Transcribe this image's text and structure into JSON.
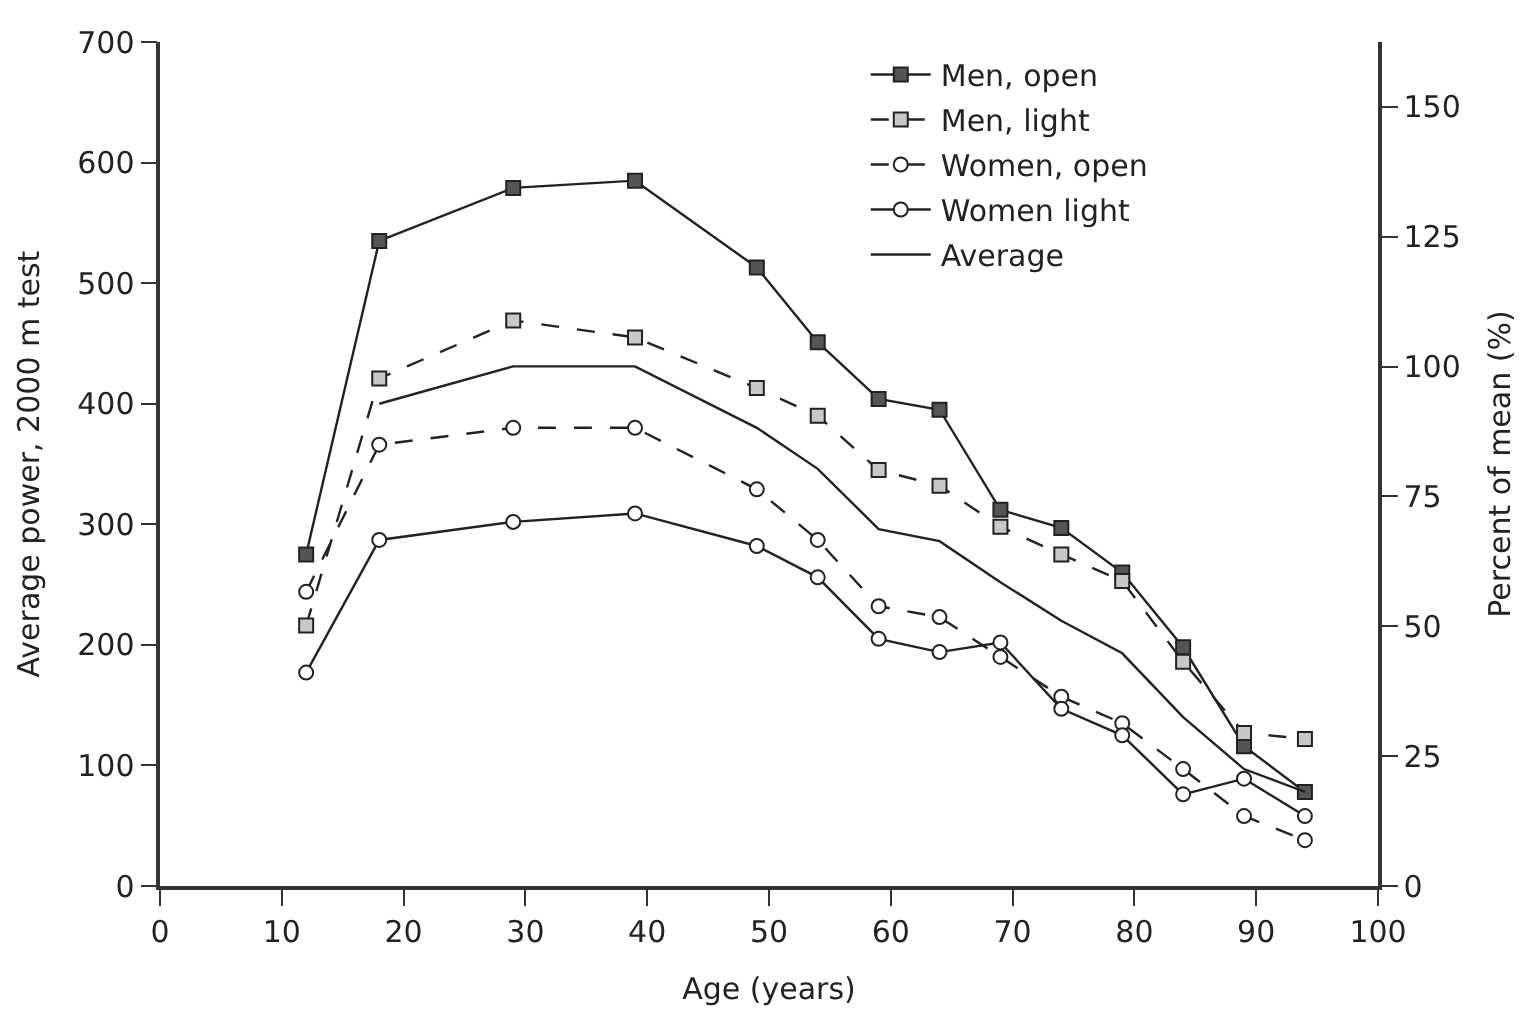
{
  "chart_data": {
    "type": "line",
    "xlabel": "Age (years)",
    "ylabel": "Average power, 2000 m test",
    "y2label": "Percent of mean (%)",
    "x": [
      12,
      18,
      29,
      39,
      49,
      54,
      59,
      64,
      69,
      74,
      79,
      84,
      89,
      94
    ],
    "xlim": [
      0,
      100
    ],
    "xticks": [
      0,
      10,
      20,
      30,
      40,
      50,
      60,
      70,
      80,
      90,
      100
    ],
    "ylim": [
      0,
      700
    ],
    "yticks": [
      0,
      100,
      200,
      300,
      400,
      500,
      600,
      700
    ],
    "y2lim": [
      0,
      162.5
    ],
    "y2ticks": [
      0,
      25,
      50,
      75,
      100,
      125,
      150
    ],
    "legend": "top right",
    "series": [
      {
        "name": "Men, open",
        "color": "#555555",
        "marker": "square",
        "line_style": "solid",
        "values": [
          275,
          535,
          579,
          585,
          513,
          451,
          404,
          395,
          312,
          297,
          260,
          198,
          116,
          78
        ]
      },
      {
        "name": "Men, light",
        "color": "#c8c8c8",
        "marker": "square",
        "line_style": "dashed",
        "values": [
          216,
          421,
          469,
          455,
          413,
          390,
          345,
          332,
          298,
          275,
          253,
          186,
          127,
          122
        ]
      },
      {
        "name": "Women, open",
        "color": "#ffffff",
        "marker": "circle",
        "line_style": "dashed",
        "values": [
          244,
          366,
          380,
          380,
          329,
          287,
          232,
          223,
          190,
          157,
          135,
          97,
          58,
          38
        ]
      },
      {
        "name": "Women light",
        "color": "#ffffff",
        "marker": "circle",
        "line_style": "solid",
        "values": [
          177,
          287,
          302,
          309,
          282,
          256,
          205,
          194,
          202,
          147,
          125,
          76,
          89,
          58
        ]
      },
      {
        "name": "Average",
        "color": "#222222",
        "marker": "none",
        "line_style": "solid",
        "x": [
          18,
          29,
          39,
          49,
          54,
          59,
          64,
          69,
          74,
          79,
          84,
          89,
          94
        ],
        "values": [
          400,
          431,
          431,
          380,
          346,
          296,
          286,
          252,
          220,
          193,
          140,
          97,
          78
        ]
      }
    ]
  }
}
